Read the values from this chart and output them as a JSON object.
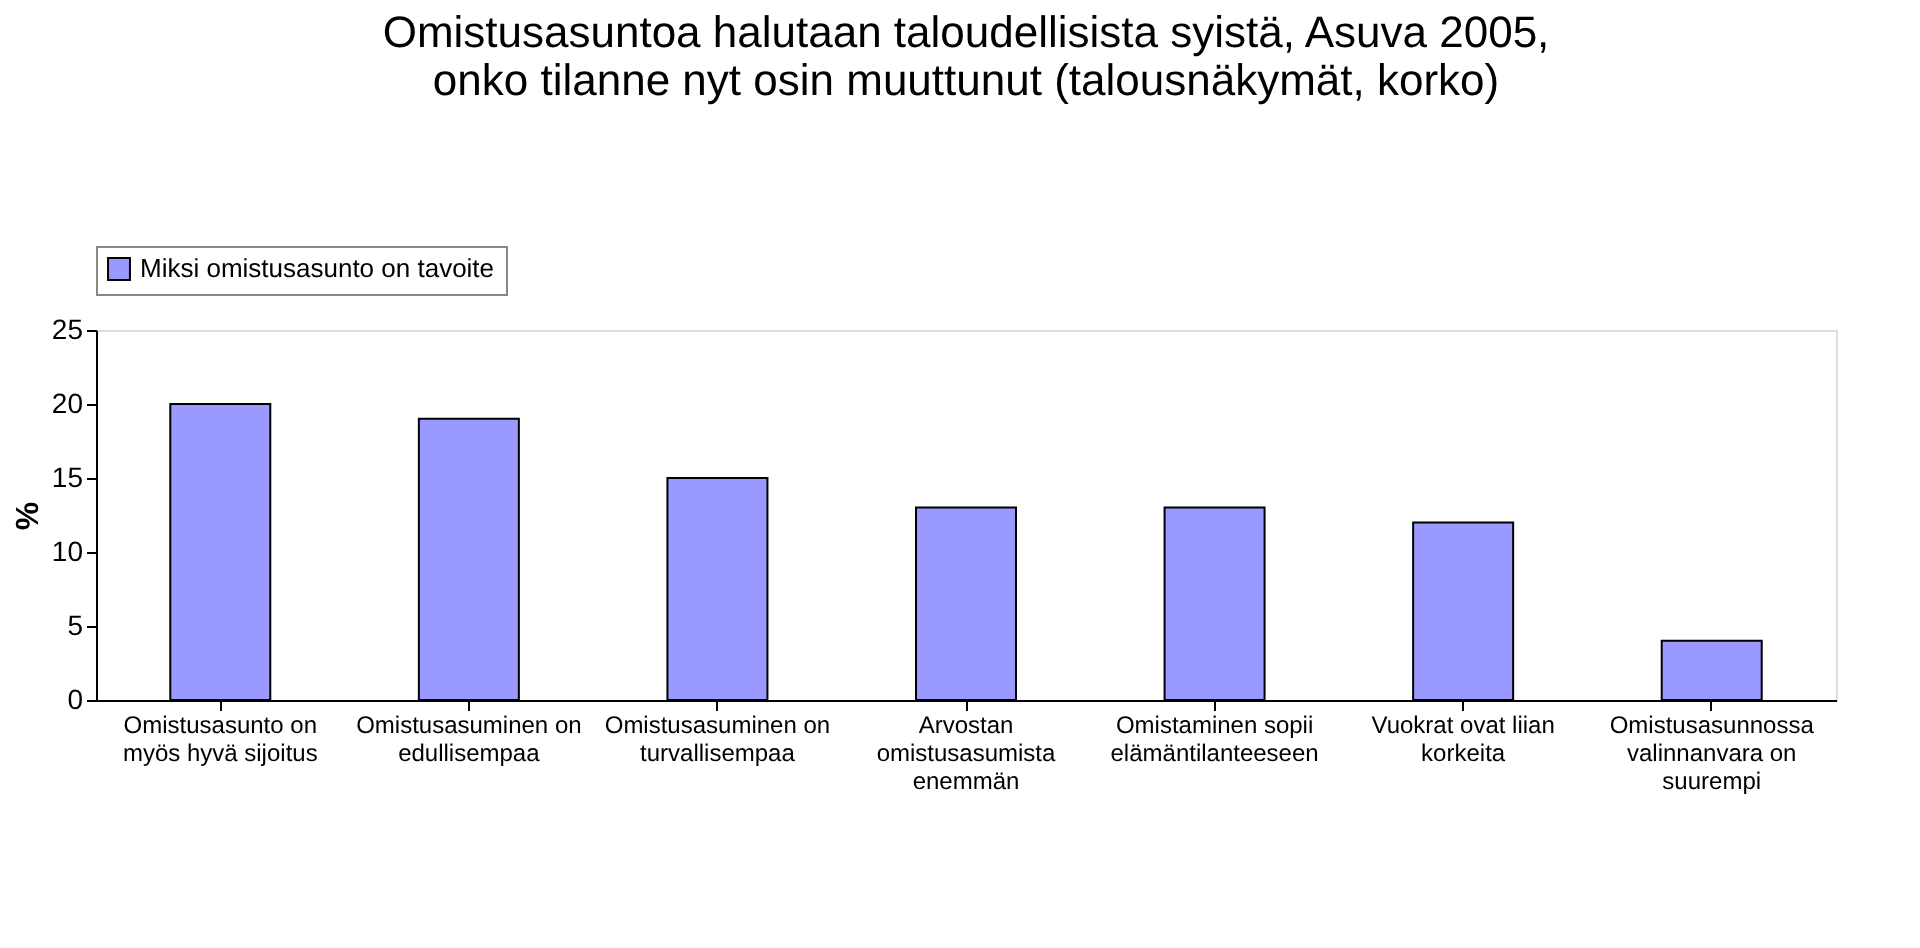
{
  "chart_data": {
    "type": "bar",
    "title": "Omistusasuntoa halutaan taloudellisista syistä, Asuva 2005,\nonko tilanne nyt osin muuttunut (talousnäkymät, korko)",
    "ylabel": "%",
    "categories": [
      "Omistusasunto on myös hyvä sijoitus",
      "Omistusasuminen on edullisempaa",
      "Omistusasuminen on turvallisempaa",
      "Arvostan omistusasumista enemmän",
      "Omistaminen sopii elämäntilanteeseen",
      "Vuokrat ovat liian korkeita",
      "Omistusasunnossa valinnanvara on suurempi"
    ],
    "series": [
      {
        "name": "Miksi omistusasunto on tavoite",
        "color": "#9999ff",
        "values": [
          20,
          19,
          15,
          13,
          13,
          12,
          4
        ]
      }
    ],
    "ylim": [
      0,
      25
    ],
    "yticks": [
      0,
      5,
      10,
      15,
      20,
      25
    ],
    "grid": false,
    "legend": "top"
  }
}
